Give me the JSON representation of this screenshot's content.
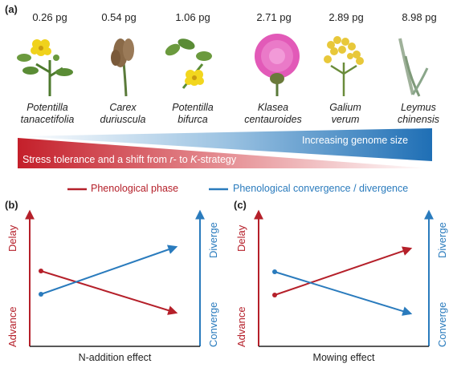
{
  "panel_a": {
    "label": "(a)",
    "species": [
      {
        "genome": "0.26 pg",
        "name_line1": "Potentilla",
        "name_line2": "tanacetifolia",
        "icon": "yellow-flower-icon"
      },
      {
        "genome": "0.54 pg",
        "name_line1": "Carex",
        "name_line2": "duriuscula",
        "icon": "sedge-spike-icon"
      },
      {
        "genome": "1.06 pg",
        "name_line1": "Potentilla",
        "name_line2": "bifurca",
        "icon": "yellow-flower-icon"
      },
      {
        "genome": "2.71 pg",
        "name_line1": "Klasea",
        "name_line2": "centauroides",
        "icon": "thistle-flower-icon"
      },
      {
        "genome": "2.89 pg",
        "name_line1": "Galium",
        "name_line2": "verum",
        "icon": "yellow-cluster-icon"
      },
      {
        "genome": "8.98 pg",
        "name_line1": "Leymus",
        "name_line2": "chinensis",
        "icon": "grass-blade-icon"
      }
    ],
    "blue_wedge_text": "Increasing genome size",
    "red_wedge_text_pre": "Stress tolerance and a shift from ",
    "red_wedge_r": "r",
    "red_wedge_mid": "- to ",
    "red_wedge_k": "K",
    "red_wedge_post": "-strategy",
    "colors": {
      "blue": "#2a7bbd",
      "red": "#c0282d"
    }
  },
  "legend": {
    "red_label": "Phenological phase",
    "blue_label": "Phenological convergence / divergence"
  },
  "panel_b": {
    "label": "(b)",
    "left_axis_top": "Delay",
    "left_axis_bottom": "Advance",
    "right_axis_top": "Diverge",
    "right_axis_bottom": "Converge",
    "xlabel": "N-addition effect"
  },
  "panel_c": {
    "label": "(c)",
    "left_axis_top": "Delay",
    "left_axis_bottom": "Advance",
    "right_axis_top": "Diverge",
    "right_axis_bottom": "Converge",
    "xlabel": "Mowing effect"
  }
}
